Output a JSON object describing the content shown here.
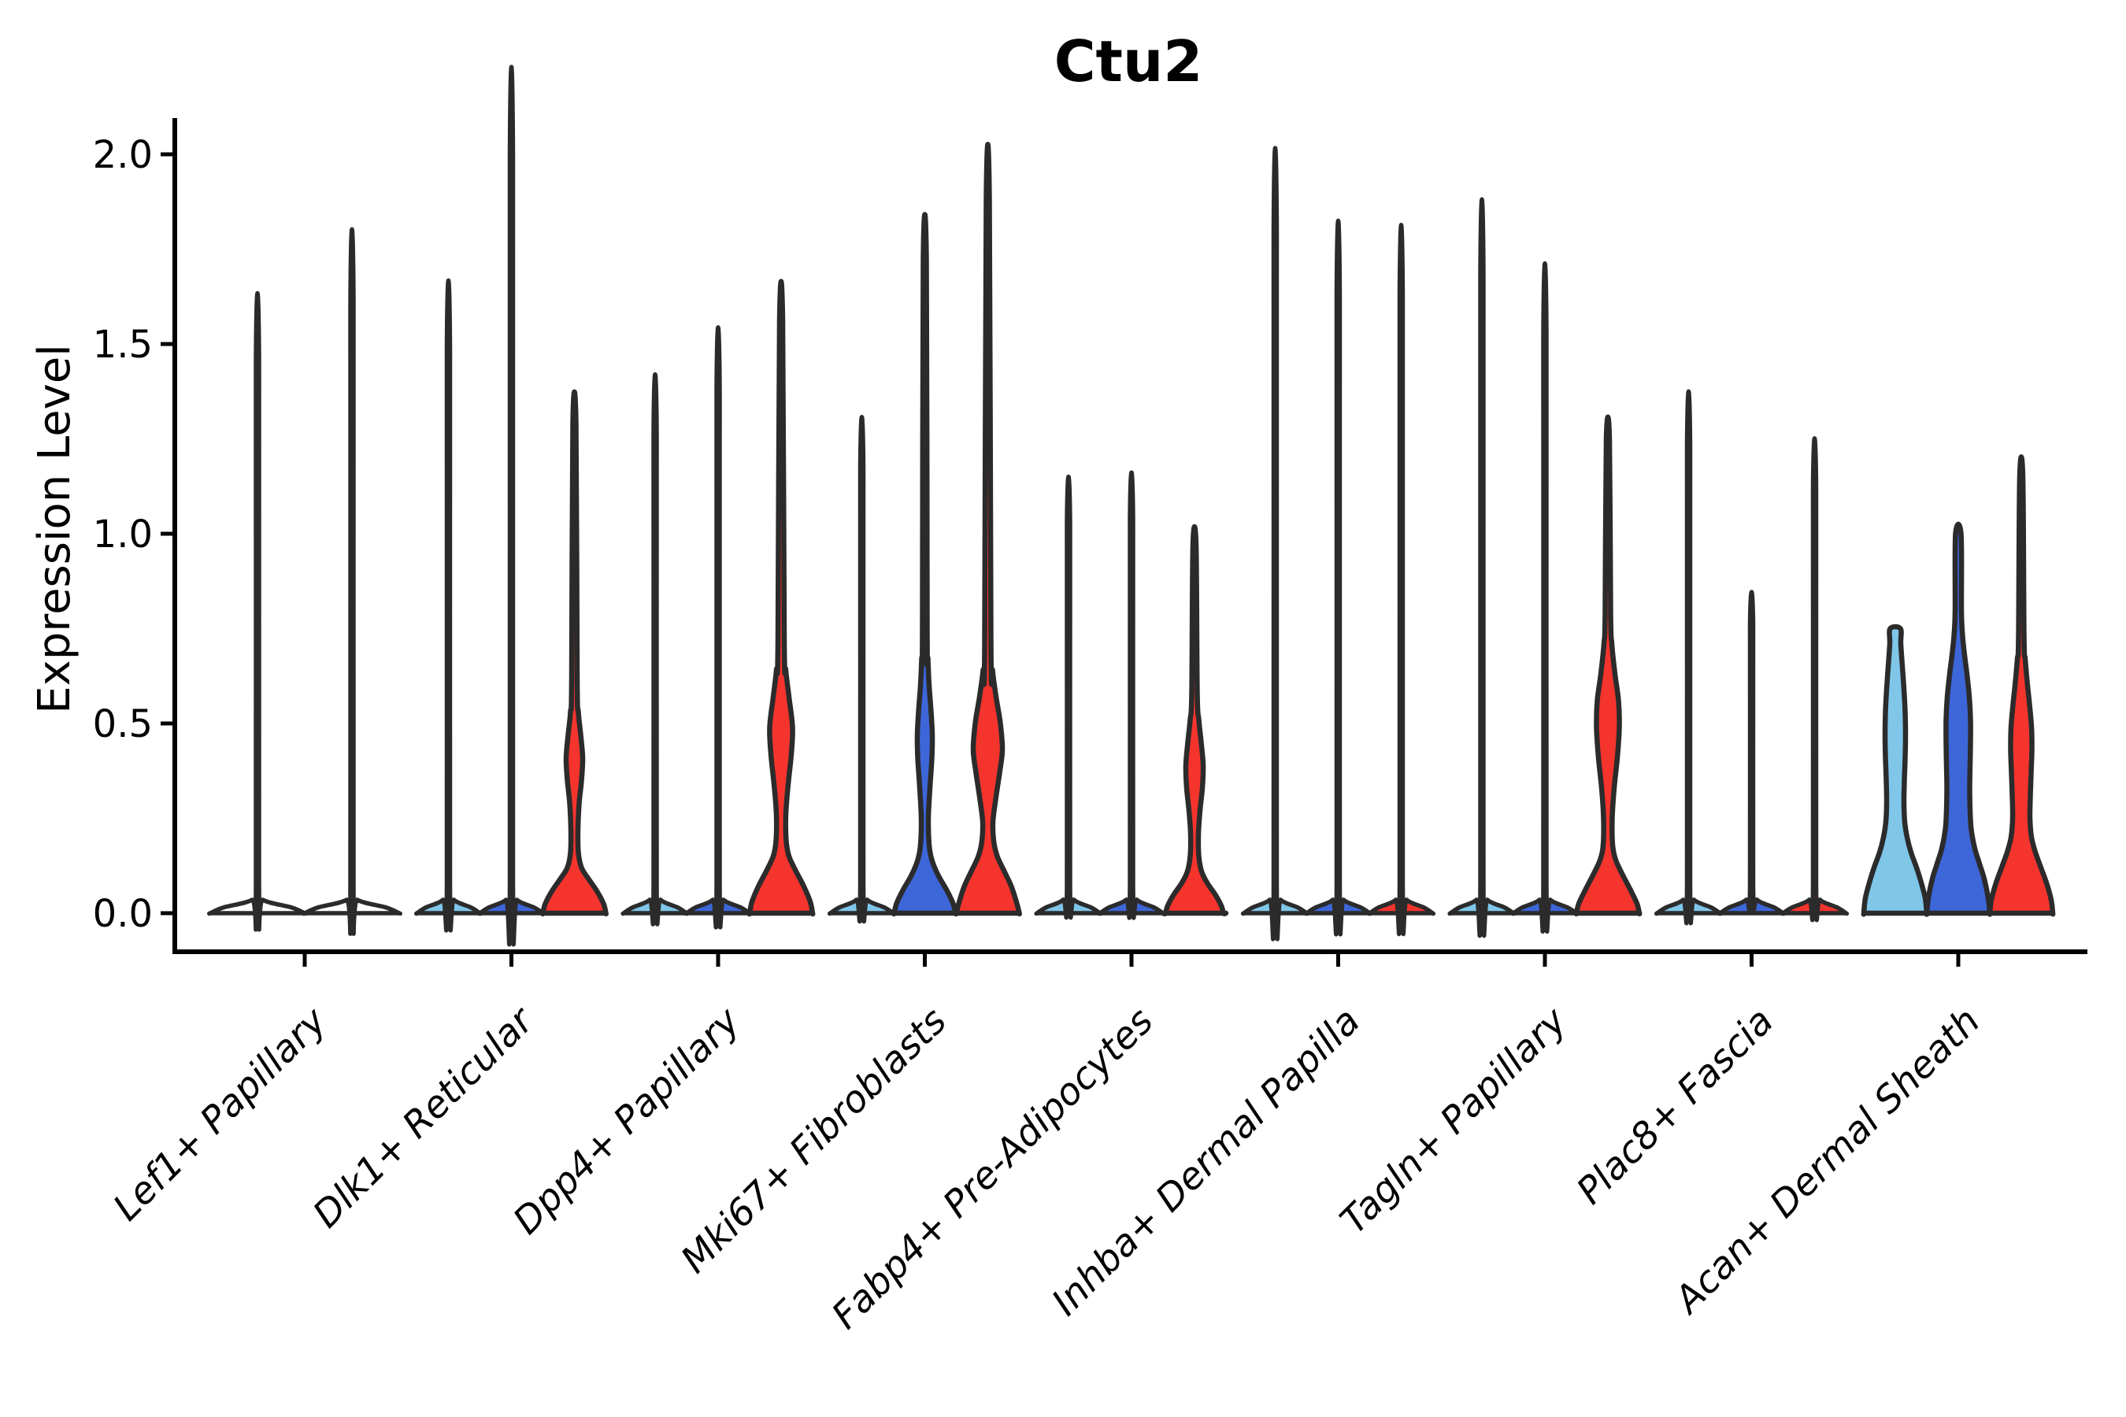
{
  "chart_data": {
    "type": "violin",
    "title": "Ctu2",
    "ylabel": "Expression Level",
    "xlabel": "",
    "grid": false,
    "legend_position": "none",
    "yticks": [
      0.0,
      0.5,
      1.0,
      1.5,
      2.0
    ],
    "ylim": [
      0,
      2.09
    ],
    "x_tick_rotation_deg": 45,
    "split_colors": {
      "light_blue": "#7FC6E9",
      "blue": "#3D66D8",
      "red": "#F5342E",
      "outline": "#2B2B2B"
    },
    "categories": [
      "Lef1+ Papillary",
      "Dlk1+ Reticular",
      "Dpp4+ Papillary",
      "Mki67+ Fibroblasts",
      "Fabp4+ Pre-Adipocytes",
      "Inhba+ Dermal Papilla",
      "Tagln+ Papillary",
      "Plac8+ Fascia",
      "Acan+ Dermal Sheath"
    ],
    "groups": [
      {
        "category": "Lef1+ Papillary",
        "violins": [
          {
            "split": null,
            "max": 1.46,
            "body": "spike"
          },
          {
            "split": null,
            "max": 1.61,
            "body": "spike"
          }
        ]
      },
      {
        "category": "Dlk1+ Reticular",
        "violins": [
          {
            "split": "light_blue",
            "max": 1.49,
            "body": "spike"
          },
          {
            "split": "blue",
            "max": 1.99,
            "body": "spike"
          },
          {
            "split": "red",
            "max": 1.29,
            "body": "profile",
            "profile": [
              [
                0,
                40
              ],
              [
                0.025,
                37
              ],
              [
                0.06,
                28
              ],
              [
                0.09,
                18
              ],
              [
                0.12,
                9
              ],
              [
                0.16,
                5
              ],
              [
                0.22,
                4.5
              ],
              [
                0.29,
                6
              ],
              [
                0.35,
                9
              ],
              [
                0.41,
                10.5
              ],
              [
                0.47,
                8
              ],
              [
                0.53,
                5
              ],
              [
                0.62,
                3.5
              ],
              [
                1.29,
                2
              ]
            ]
          }
        ]
      },
      {
        "category": "Dpp4+ Papillary",
        "violins": [
          {
            "split": "light_blue",
            "max": 1.27,
            "body": "spike"
          },
          {
            "split": "blue",
            "max": 1.38,
            "body": "spike"
          },
          {
            "split": "red",
            "max": 1.56,
            "body": "profile",
            "profile": [
              [
                0,
                40
              ],
              [
                0.03,
                37
              ],
              [
                0.07,
                29
              ],
              [
                0.11,
                19
              ],
              [
                0.15,
                10
              ],
              [
                0.19,
                6.5
              ],
              [
                0.26,
                6
              ],
              [
                0.34,
                9
              ],
              [
                0.42,
                13
              ],
              [
                0.49,
                14.5
              ],
              [
                0.57,
                10
              ],
              [
                0.64,
                6
              ],
              [
                0.72,
                4
              ],
              [
                1.56,
                2
              ]
            ]
          }
        ]
      },
      {
        "category": "Mki67+ Fibroblasts",
        "violins": [
          {
            "split": "light_blue",
            "max": 1.17,
            "body": "spike"
          },
          {
            "split": "blue",
            "max": 1.72,
            "body": "profile",
            "profile": [
              [
                0,
                39
              ],
              [
                0.025,
                36
              ],
              [
                0.06,
                28
              ],
              [
                0.1,
                17
              ],
              [
                0.14,
                9
              ],
              [
                0.18,
                5.5
              ],
              [
                0.25,
                4.5
              ],
              [
                0.33,
                6.5
              ],
              [
                0.41,
                9
              ],
              [
                0.47,
                9.5
              ],
              [
                0.53,
                8
              ],
              [
                0.6,
                5.5
              ],
              [
                0.67,
                4
              ],
              [
                0.75,
                3
              ],
              [
                1.72,
                2
              ]
            ]
          },
          {
            "split": "red",
            "max": 1.88,
            "body": "profile",
            "profile": [
              [
                0,
                40
              ],
              [
                0.025,
                37
              ],
              [
                0.07,
                30
              ],
              [
                0.11,
                21
              ],
              [
                0.15,
                12
              ],
              [
                0.19,
                7.5
              ],
              [
                0.24,
                6.5
              ],
              [
                0.3,
                10
              ],
              [
                0.37,
                15
              ],
              [
                0.43,
                18.5
              ],
              [
                0.5,
                16
              ],
              [
                0.57,
                10.5
              ],
              [
                0.64,
                6
              ],
              [
                0.71,
                4
              ],
              [
                1.88,
                2
              ]
            ]
          }
        ]
      },
      {
        "category": "Fabp4+ Pre-Adipocytes",
        "violins": [
          {
            "split": "light_blue",
            "max": 1.03,
            "body": "spike"
          },
          {
            "split": "blue",
            "max": 1.04,
            "body": "spike"
          },
          {
            "split": "red",
            "max": 0.97,
            "body": "profile",
            "profile": [
              [
                0,
                37
              ],
              [
                0.02,
                34
              ],
              [
                0.05,
                26
              ],
              [
                0.08,
                16
              ],
              [
                0.11,
                9
              ],
              [
                0.15,
                5.5
              ],
              [
                0.21,
                5
              ],
              [
                0.27,
                7
              ],
              [
                0.33,
                10
              ],
              [
                0.39,
                11
              ],
              [
                0.45,
                8.5
              ],
              [
                0.51,
                5.5
              ],
              [
                0.58,
                3.5
              ],
              [
                0.97,
                2
              ]
            ]
          }
        ]
      },
      {
        "category": "Inhba+ Dermal Papilla",
        "violins": [
          {
            "split": "light_blue",
            "max": 1.8,
            "body": "spike"
          },
          {
            "split": "blue",
            "max": 1.63,
            "body": "spike"
          },
          {
            "split": "red",
            "max": 1.62,
            "body": "spike"
          }
        ]
      },
      {
        "category": "Tagln+ Papillary",
        "violins": [
          {
            "split": "light_blue",
            "max": 1.68,
            "body": "spike"
          },
          {
            "split": "blue",
            "max": 1.53,
            "body": "spike"
          },
          {
            "split": "red",
            "max": 1.25,
            "body": "profile",
            "profile": [
              [
                0,
                40
              ],
              [
                0.025,
                37
              ],
              [
                0.06,
                29
              ],
              [
                0.1,
                19
              ],
              [
                0.14,
                10
              ],
              [
                0.18,
                6
              ],
              [
                0.25,
                5.5
              ],
              [
                0.33,
                8
              ],
              [
                0.41,
                12
              ],
              [
                0.49,
                14.5
              ],
              [
                0.56,
                13.5
              ],
              [
                0.63,
                9
              ],
              [
                0.71,
                5
              ],
              [
                0.79,
                3.5
              ],
              [
                1.25,
                2
              ]
            ]
          }
        ]
      },
      {
        "category": "Plac8+ Fascia",
        "violins": [
          {
            "split": "light_blue",
            "max": 1.23,
            "body": "spike"
          },
          {
            "split": "blue",
            "max": 0.76,
            "body": "spike"
          },
          {
            "split": "red",
            "max": 1.12,
            "body": "spike"
          }
        ]
      },
      {
        "category": "Acan+ Dermal Sheath",
        "violins": [
          {
            "split": "light_blue",
            "max": 0.75,
            "body": "profile",
            "profile": [
              [
                0,
                40
              ],
              [
                0.04,
                38
              ],
              [
                0.08,
                33
              ],
              [
                0.12,
                27
              ],
              [
                0.16,
                20
              ],
              [
                0.2,
                15
              ],
              [
                0.24,
                12
              ],
              [
                0.29,
                11
              ],
              [
                0.35,
                11.5
              ],
              [
                0.41,
                12.5
              ],
              [
                0.47,
                13
              ],
              [
                0.53,
                12.5
              ],
              [
                0.59,
                11
              ],
              [
                0.65,
                9
              ],
              [
                0.71,
                7
              ],
              [
                0.75,
                6.5
              ]
            ]
          },
          {
            "split": "blue",
            "max": 1.0,
            "body": "profile",
            "profile": [
              [
                0,
                40
              ],
              [
                0.04,
                38
              ],
              [
                0.09,
                33
              ],
              [
                0.13,
                27
              ],
              [
                0.17,
                21
              ],
              [
                0.22,
                16.5
              ],
              [
                0.27,
                15
              ],
              [
                0.33,
                14.5
              ],
              [
                0.39,
                15
              ],
              [
                0.45,
                15.5
              ],
              [
                0.51,
                15.5
              ],
              [
                0.57,
                14
              ],
              [
                0.63,
                11
              ],
              [
                0.68,
                8
              ],
              [
                0.73,
                5.5
              ],
              [
                0.8,
                4
              ],
              [
                1.0,
                3.5
              ]
            ]
          },
          {
            "split": "red",
            "max": 1.15,
            "body": "profile",
            "profile": [
              [
                0,
                40
              ],
              [
                0.035,
                38
              ],
              [
                0.08,
                32
              ],
              [
                0.12,
                25
              ],
              [
                0.16,
                18
              ],
              [
                0.2,
                13
              ],
              [
                0.25,
                11
              ],
              [
                0.31,
                11.5
              ],
              [
                0.37,
                12.5
              ],
              [
                0.43,
                13.5
              ],
              [
                0.49,
                13
              ],
              [
                0.55,
                10.5
              ],
              [
                0.61,
                7.5
              ],
              [
                0.67,
                5
              ],
              [
                0.73,
                3.5
              ],
              [
                1.15,
                2
              ]
            ]
          }
        ]
      }
    ]
  }
}
